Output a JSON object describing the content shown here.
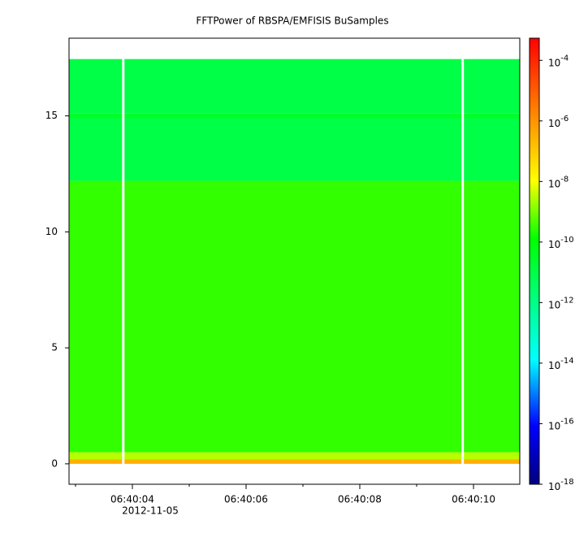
{
  "chart_data": {
    "type": "spectrogram",
    "title": "FFTPower of RBSPA/EMFISIS  BuSamples",
    "x_date_label": "2012-11-05",
    "xlim": [
      2.886,
      10.814
    ],
    "xticks": [
      {
        "value": 4,
        "label": "06:40:04"
      },
      {
        "value": 6,
        "label": "06:40:06"
      },
      {
        "value": 8,
        "label": "06:40:08"
      },
      {
        "value": 10,
        "label": "06:40:10"
      }
    ],
    "xminor_ticks": [
      3,
      5,
      7,
      9
    ],
    "ylim": [
      -0.88,
      18.35
    ],
    "yticks": [
      0,
      5,
      10,
      15
    ],
    "freq_bins": [
      0,
      0.2,
      0.5,
      12.2,
      14.9,
      15.1,
      17.45
    ],
    "power": [
      3e-07,
      3e-09,
      3e-10,
      1e-11,
      3e-11,
      1e-11
    ],
    "gaps": [
      3.84,
      9.81
    ],
    "zlog": true,
    "zlim": [
      1e-18,
      0.00054
    ],
    "zticks": [
      {
        "value": 0.0001,
        "label": "10^-4"
      },
      {
        "value": 1e-06,
        "label": "10^-6"
      },
      {
        "value": 1e-08,
        "label": "10^-8"
      },
      {
        "value": 1e-10,
        "label": "10^-10"
      },
      {
        "value": 1e-12,
        "label": "10^-12"
      },
      {
        "value": 1e-14,
        "label": "10^-14"
      },
      {
        "value": 1e-16,
        "label": "10^-16"
      },
      {
        "value": 1e-18,
        "label": "10^-18"
      }
    ],
    "colormap": [
      "#00007f",
      "#0000ff",
      "#00ffff",
      "#00ff00",
      "#ffff00",
      "#ff0000"
    ],
    "colormap_stops": [
      0,
      0.13,
      0.28,
      0.55,
      0.68,
      1
    ]
  }
}
